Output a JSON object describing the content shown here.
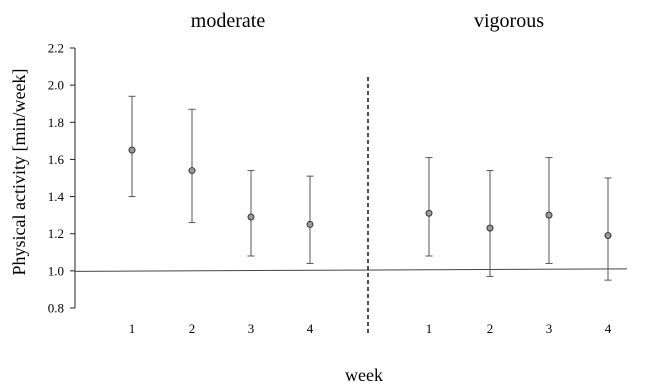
{
  "chart_data": {
    "type": "scatter",
    "panels": [
      {
        "title": "moderate",
        "categories": [
          "1",
          "2",
          "3",
          "4"
        ],
        "points": [
          {
            "x": "1",
            "mean": 1.65,
            "lower": 1.4,
            "upper": 1.94
          },
          {
            "x": "2",
            "mean": 1.54,
            "lower": 1.26,
            "upper": 1.87
          },
          {
            "x": "3",
            "mean": 1.29,
            "lower": 1.08,
            "upper": 1.54
          },
          {
            "x": "4",
            "mean": 1.25,
            "lower": 1.04,
            "upper": 1.51
          }
        ]
      },
      {
        "title": "vigorous",
        "categories": [
          "1",
          "2",
          "3",
          "4"
        ],
        "points": [
          {
            "x": "1",
            "mean": 1.31,
            "lower": 1.08,
            "upper": 1.61
          },
          {
            "x": "2",
            "mean": 1.23,
            "lower": 0.97,
            "upper": 1.54
          },
          {
            "x": "3",
            "mean": 1.3,
            "lower": 1.04,
            "upper": 1.61
          },
          {
            "x": "4",
            "mean": 1.19,
            "lower": 0.95,
            "upper": 1.5
          }
        ]
      }
    ],
    "xlabel": "week",
    "ylabel": "Physical activity [min/week]",
    "ylim": [
      0.8,
      2.2
    ],
    "yticks": [
      "0.8",
      "1.0",
      "1.2",
      "1.4",
      "1.6",
      "1.8",
      "2.0",
      "2.2"
    ],
    "reference_line": 1.0,
    "grid": false
  }
}
